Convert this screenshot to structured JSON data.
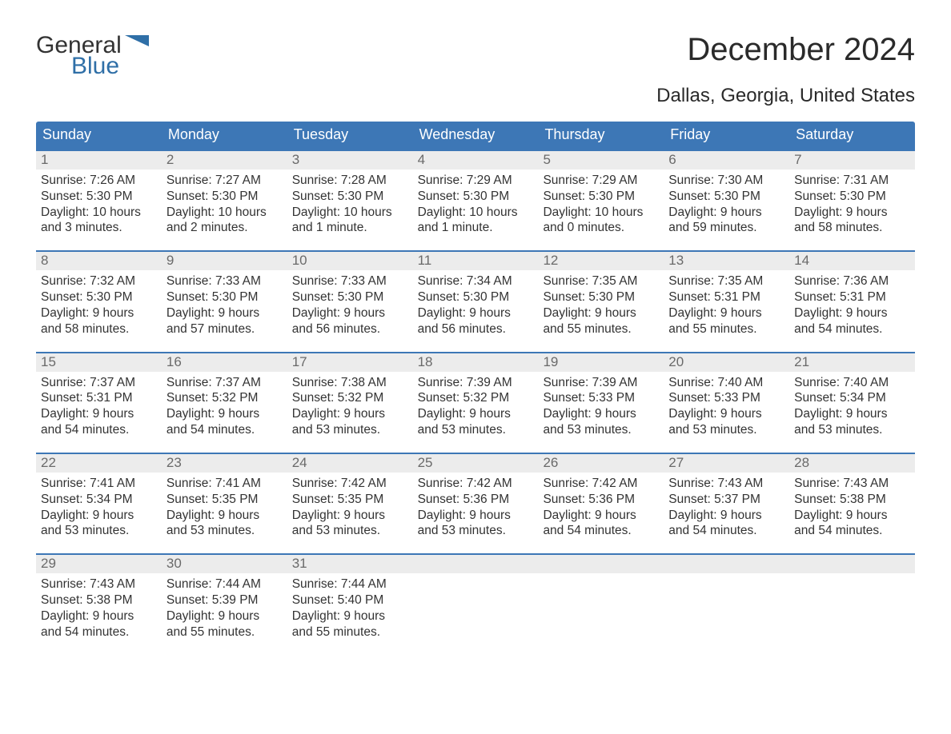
{
  "colors": {
    "header_bg": "#3d77b6",
    "header_text": "#ffffff",
    "daynum_bg": "#ececec",
    "daynum_text": "#6a6a6a",
    "body_text": "#333333",
    "logo_blue": "#2f6fa7",
    "row_border": "#3d77b6",
    "page_bg": "#ffffff"
  },
  "logo": {
    "line1": "General",
    "line2": "Blue"
  },
  "title": "December 2024",
  "location": "Dallas, Georgia, United States",
  "weekdays": [
    "Sunday",
    "Monday",
    "Tuesday",
    "Wednesday",
    "Thursday",
    "Friday",
    "Saturday"
  ],
  "weeks": [
    [
      {
        "n": "1",
        "sunrise": "Sunrise: 7:26 AM",
        "sunset": "Sunset: 5:30 PM",
        "dl1": "Daylight: 10 hours",
        "dl2": "and 3 minutes."
      },
      {
        "n": "2",
        "sunrise": "Sunrise: 7:27 AM",
        "sunset": "Sunset: 5:30 PM",
        "dl1": "Daylight: 10 hours",
        "dl2": "and 2 minutes."
      },
      {
        "n": "3",
        "sunrise": "Sunrise: 7:28 AM",
        "sunset": "Sunset: 5:30 PM",
        "dl1": "Daylight: 10 hours",
        "dl2": "and 1 minute."
      },
      {
        "n": "4",
        "sunrise": "Sunrise: 7:29 AM",
        "sunset": "Sunset: 5:30 PM",
        "dl1": "Daylight: 10 hours",
        "dl2": "and 1 minute."
      },
      {
        "n": "5",
        "sunrise": "Sunrise: 7:29 AM",
        "sunset": "Sunset: 5:30 PM",
        "dl1": "Daylight: 10 hours",
        "dl2": "and 0 minutes."
      },
      {
        "n": "6",
        "sunrise": "Sunrise: 7:30 AM",
        "sunset": "Sunset: 5:30 PM",
        "dl1": "Daylight: 9 hours",
        "dl2": "and 59 minutes."
      },
      {
        "n": "7",
        "sunrise": "Sunrise: 7:31 AM",
        "sunset": "Sunset: 5:30 PM",
        "dl1": "Daylight: 9 hours",
        "dl2": "and 58 minutes."
      }
    ],
    [
      {
        "n": "8",
        "sunrise": "Sunrise: 7:32 AM",
        "sunset": "Sunset: 5:30 PM",
        "dl1": "Daylight: 9 hours",
        "dl2": "and 58 minutes."
      },
      {
        "n": "9",
        "sunrise": "Sunrise: 7:33 AM",
        "sunset": "Sunset: 5:30 PM",
        "dl1": "Daylight: 9 hours",
        "dl2": "and 57 minutes."
      },
      {
        "n": "10",
        "sunrise": "Sunrise: 7:33 AM",
        "sunset": "Sunset: 5:30 PM",
        "dl1": "Daylight: 9 hours",
        "dl2": "and 56 minutes."
      },
      {
        "n": "11",
        "sunrise": "Sunrise: 7:34 AM",
        "sunset": "Sunset: 5:30 PM",
        "dl1": "Daylight: 9 hours",
        "dl2": "and 56 minutes."
      },
      {
        "n": "12",
        "sunrise": "Sunrise: 7:35 AM",
        "sunset": "Sunset: 5:30 PM",
        "dl1": "Daylight: 9 hours",
        "dl2": "and 55 minutes."
      },
      {
        "n": "13",
        "sunrise": "Sunrise: 7:35 AM",
        "sunset": "Sunset: 5:31 PM",
        "dl1": "Daylight: 9 hours",
        "dl2": "and 55 minutes."
      },
      {
        "n": "14",
        "sunrise": "Sunrise: 7:36 AM",
        "sunset": "Sunset: 5:31 PM",
        "dl1": "Daylight: 9 hours",
        "dl2": "and 54 minutes."
      }
    ],
    [
      {
        "n": "15",
        "sunrise": "Sunrise: 7:37 AM",
        "sunset": "Sunset: 5:31 PM",
        "dl1": "Daylight: 9 hours",
        "dl2": "and 54 minutes."
      },
      {
        "n": "16",
        "sunrise": "Sunrise: 7:37 AM",
        "sunset": "Sunset: 5:32 PM",
        "dl1": "Daylight: 9 hours",
        "dl2": "and 54 minutes."
      },
      {
        "n": "17",
        "sunrise": "Sunrise: 7:38 AM",
        "sunset": "Sunset: 5:32 PM",
        "dl1": "Daylight: 9 hours",
        "dl2": "and 53 minutes."
      },
      {
        "n": "18",
        "sunrise": "Sunrise: 7:39 AM",
        "sunset": "Sunset: 5:32 PM",
        "dl1": "Daylight: 9 hours",
        "dl2": "and 53 minutes."
      },
      {
        "n": "19",
        "sunrise": "Sunrise: 7:39 AM",
        "sunset": "Sunset: 5:33 PM",
        "dl1": "Daylight: 9 hours",
        "dl2": "and 53 minutes."
      },
      {
        "n": "20",
        "sunrise": "Sunrise: 7:40 AM",
        "sunset": "Sunset: 5:33 PM",
        "dl1": "Daylight: 9 hours",
        "dl2": "and 53 minutes."
      },
      {
        "n": "21",
        "sunrise": "Sunrise: 7:40 AM",
        "sunset": "Sunset: 5:34 PM",
        "dl1": "Daylight: 9 hours",
        "dl2": "and 53 minutes."
      }
    ],
    [
      {
        "n": "22",
        "sunrise": "Sunrise: 7:41 AM",
        "sunset": "Sunset: 5:34 PM",
        "dl1": "Daylight: 9 hours",
        "dl2": "and 53 minutes."
      },
      {
        "n": "23",
        "sunrise": "Sunrise: 7:41 AM",
        "sunset": "Sunset: 5:35 PM",
        "dl1": "Daylight: 9 hours",
        "dl2": "and 53 minutes."
      },
      {
        "n": "24",
        "sunrise": "Sunrise: 7:42 AM",
        "sunset": "Sunset: 5:35 PM",
        "dl1": "Daylight: 9 hours",
        "dl2": "and 53 minutes."
      },
      {
        "n": "25",
        "sunrise": "Sunrise: 7:42 AM",
        "sunset": "Sunset: 5:36 PM",
        "dl1": "Daylight: 9 hours",
        "dl2": "and 53 minutes."
      },
      {
        "n": "26",
        "sunrise": "Sunrise: 7:42 AM",
        "sunset": "Sunset: 5:36 PM",
        "dl1": "Daylight: 9 hours",
        "dl2": "and 54 minutes."
      },
      {
        "n": "27",
        "sunrise": "Sunrise: 7:43 AM",
        "sunset": "Sunset: 5:37 PM",
        "dl1": "Daylight: 9 hours",
        "dl2": "and 54 minutes."
      },
      {
        "n": "28",
        "sunrise": "Sunrise: 7:43 AM",
        "sunset": "Sunset: 5:38 PM",
        "dl1": "Daylight: 9 hours",
        "dl2": "and 54 minutes."
      }
    ],
    [
      {
        "n": "29",
        "sunrise": "Sunrise: 7:43 AM",
        "sunset": "Sunset: 5:38 PM",
        "dl1": "Daylight: 9 hours",
        "dl2": "and 54 minutes."
      },
      {
        "n": "30",
        "sunrise": "Sunrise: 7:44 AM",
        "sunset": "Sunset: 5:39 PM",
        "dl1": "Daylight: 9 hours",
        "dl2": "and 55 minutes."
      },
      {
        "n": "31",
        "sunrise": "Sunrise: 7:44 AM",
        "sunset": "Sunset: 5:40 PM",
        "dl1": "Daylight: 9 hours",
        "dl2": "and 55 minutes."
      },
      {
        "empty": true
      },
      {
        "empty": true
      },
      {
        "empty": true
      },
      {
        "empty": true
      }
    ]
  ]
}
